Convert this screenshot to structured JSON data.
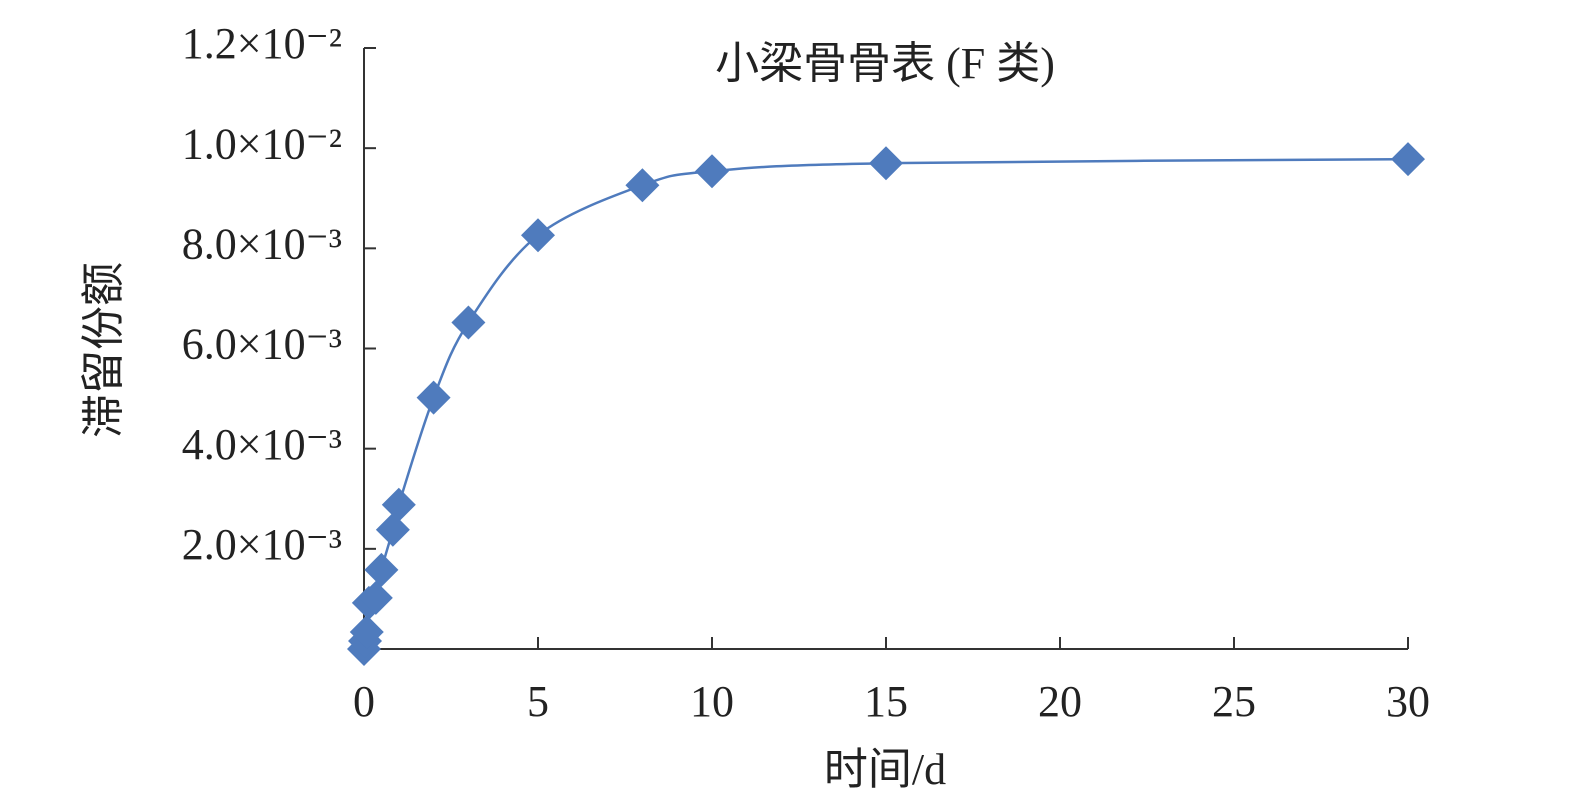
{
  "chart_data": {
    "type": "scatter-line",
    "title": "小梁骨骨表 (F 类)",
    "x_label": "时间/d",
    "y_label": "滞留份额",
    "x": [
      0,
      0.03,
      0.08,
      0.14,
      0.34,
      0.5,
      0.83,
      1.0,
      2.0,
      3.0,
      5.0,
      8.0,
      10,
      15,
      30
    ],
    "series": [
      {
        "color": "#4f7bbd",
        "values": [
          0,
          0.00016,
          0.00034,
          0.00092,
          0.00102,
          0.00158,
          0.00238,
          0.00288,
          0.00502,
          0.00652,
          0.00826,
          0.00926,
          0.00954,
          0.0097,
          0.00978
        ]
      }
    ],
    "xlim": [
      0,
      30
    ],
    "xticks": [
      0,
      5,
      10,
      15,
      20,
      25,
      30
    ],
    "ylim": [
      0,
      0.012
    ],
    "yticks": [
      {
        "value": 0.002,
        "label": "2.0×10⁻³"
      },
      {
        "value": 0.004,
        "label": "4.0×10⁻³"
      },
      {
        "value": 0.006,
        "label": "6.0×10⁻³"
      },
      {
        "value": 0.008,
        "label": "8.0×10⁻³"
      },
      {
        "value": 0.01,
        "label": "1.0×10⁻²"
      },
      {
        "value": 0.012,
        "label": "1.2×10⁻²"
      }
    ],
    "grid": false
  }
}
